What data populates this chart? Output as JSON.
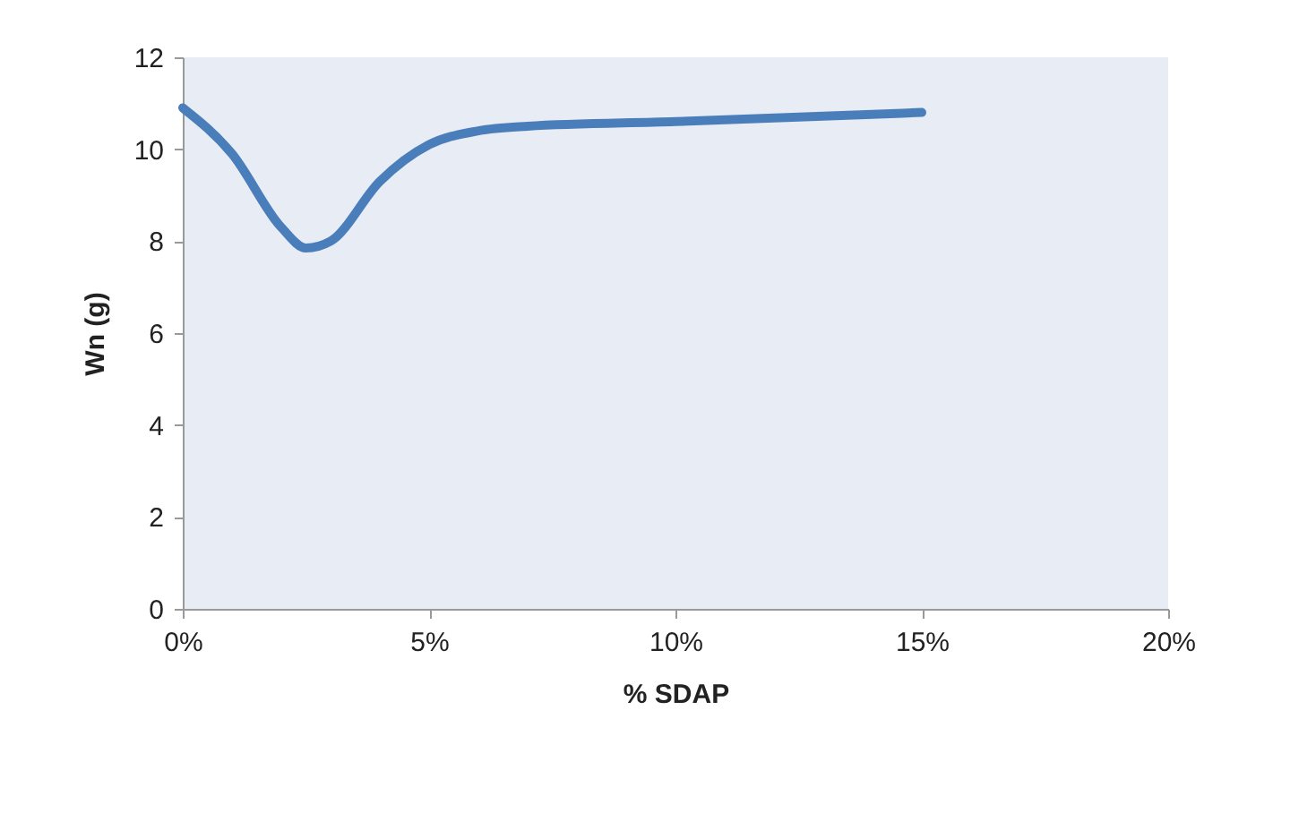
{
  "chart_data": {
    "type": "line",
    "xlabel": "% SDAP",
    "ylabel": "Wn (g)",
    "x": [
      0,
      1,
      2,
      2.5,
      3,
      4,
      5,
      6,
      7,
      10,
      15
    ],
    "series": [
      {
        "color": "#4a7ebb",
        "values": [
          10.9,
          9.9,
          8.3,
          7.85,
          8.0,
          9.3,
          10.1,
          10.4,
          10.5,
          10.6,
          10.8
        ]
      }
    ],
    "xlim": [
      0,
      20
    ],
    "xticks": [
      {
        "value": 0,
        "label": "0%"
      },
      {
        "value": 5,
        "label": "5%"
      },
      {
        "value": 10,
        "label": "10%"
      },
      {
        "value": 15,
        "label": "15%"
      },
      {
        "value": 20,
        "label": "20%"
      }
    ],
    "ylim": [
      0,
      12
    ],
    "yticks": [
      0,
      2,
      4,
      6,
      8,
      10,
      12
    ],
    "grid": false,
    "marker": "none",
    "line_style": "solid"
  }
}
